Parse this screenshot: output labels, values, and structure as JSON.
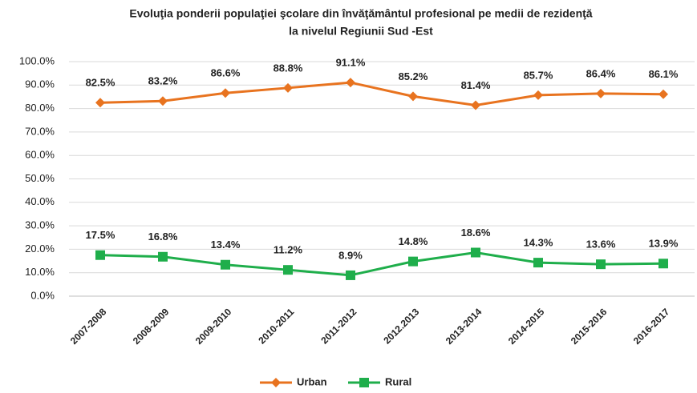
{
  "chart_data": {
    "type": "line",
    "title": "Evoluţia ponderii populaţiei şcolare din învăţământul profesional pe medii de rezidenţă",
    "subtitle": "la nivelul Regiunii Sud -Est",
    "categories": [
      "2007-2008",
      "2008-2009",
      "2009-2010",
      "2010-2011",
      "2011-2012",
      "2012.2013",
      "2013-2014",
      "2014-2015",
      "2015-2016",
      "2016-2017"
    ],
    "series": [
      {
        "name": "Urban",
        "color": "#e8731f",
        "marker": "diamond",
        "values": [
          82.5,
          83.2,
          86.6,
          88.8,
          91.1,
          85.2,
          81.4,
          85.7,
          86.4,
          86.1
        ],
        "value_labels": [
          "82.5%",
          "83.2%",
          "86.6%",
          "88.8%",
          "91.1%",
          "85.2%",
          "81.4%",
          "85.7%",
          "86.4%",
          "86.1%"
        ]
      },
      {
        "name": "Rural",
        "color": "#1fae4b",
        "marker": "square",
        "values": [
          17.5,
          16.8,
          13.4,
          11.2,
          8.9,
          14.8,
          18.6,
          14.3,
          13.6,
          13.9
        ],
        "value_labels": [
          "17.5%",
          "16.8%",
          "13.4%",
          "11.2%",
          "8.9%",
          "14.8%",
          "18.6%",
          "14.3%",
          "13.6%",
          "13.9%"
        ]
      }
    ],
    "ylim": [
      0,
      100
    ],
    "yticks": [
      {
        "value": 0,
        "label": "0.0%"
      },
      {
        "value": 10,
        "label": "10.0%"
      },
      {
        "value": 20,
        "label": "20.0%"
      },
      {
        "value": 30,
        "label": "30.0%"
      },
      {
        "value": 40,
        "label": "40.0%"
      },
      {
        "value": 50,
        "label": "50.0%"
      },
      {
        "value": 60,
        "label": "60.0%"
      },
      {
        "value": 70,
        "label": "70.0%"
      },
      {
        "value": 80,
        "label": "80.0%"
      },
      {
        "value": 90,
        "label": "90.0%"
      },
      {
        "value": 100,
        "label": "100.0%"
      }
    ],
    "grid": true,
    "legend": "bottom"
  }
}
